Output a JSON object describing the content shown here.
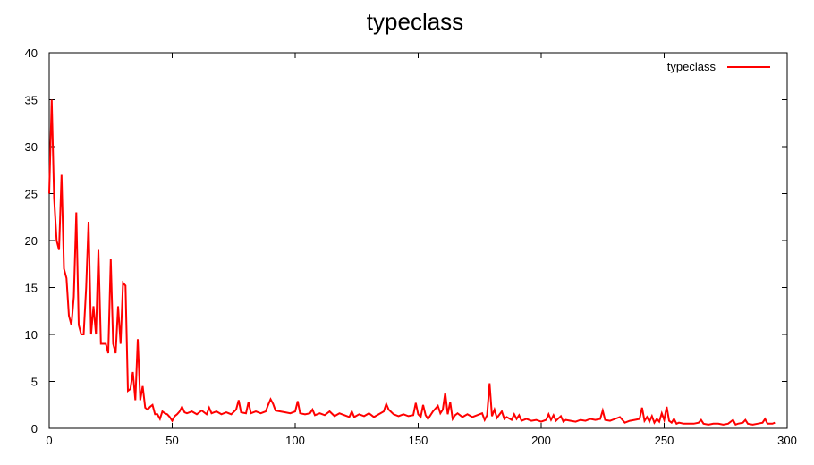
{
  "chart_data": {
    "type": "line",
    "title": "typeclass",
    "xlabel": "",
    "ylabel": "",
    "xlim": [
      0,
      300
    ],
    "ylim": [
      0,
      40
    ],
    "xticks": [
      "0",
      "50",
      "100",
      "150",
      "200",
      "250",
      "300"
    ],
    "yticks": [
      "0",
      "5",
      "10",
      "15",
      "20",
      "25",
      "30",
      "35",
      "40"
    ],
    "grid": false,
    "legend_position": "top-right",
    "series": [
      {
        "name": "typeclass",
        "color": "#ff0000",
        "points": [
          [
            0,
            25
          ],
          [
            1,
            35
          ],
          [
            2,
            24.5
          ],
          [
            3,
            20
          ],
          [
            4,
            19
          ],
          [
            5,
            27
          ],
          [
            6,
            17
          ],
          [
            7,
            16
          ],
          [
            8,
            12
          ],
          [
            9,
            11
          ],
          [
            10,
            14
          ],
          [
            11,
            23
          ],
          [
            12,
            11
          ],
          [
            13,
            10
          ],
          [
            14,
            10
          ],
          [
            15,
            15
          ],
          [
            16,
            22
          ],
          [
            17,
            10
          ],
          [
            18,
            13
          ],
          [
            19,
            10
          ],
          [
            20,
            19
          ],
          [
            21,
            9
          ],
          [
            22,
            9
          ],
          [
            23,
            9
          ],
          [
            24,
            8
          ],
          [
            25,
            18
          ],
          [
            26,
            9
          ],
          [
            27,
            8
          ],
          [
            28,
            13
          ],
          [
            29,
            9
          ],
          [
            30,
            15.5
          ],
          [
            31,
            15.2
          ],
          [
            32,
            4
          ],
          [
            33,
            4.2
          ],
          [
            34,
            6
          ],
          [
            35,
            3
          ],
          [
            36,
            9.5
          ],
          [
            37,
            3
          ],
          [
            38,
            4.5
          ],
          [
            39,
            2.2
          ],
          [
            40,
            2
          ],
          [
            41,
            2.3
          ],
          [
            42,
            2.5
          ],
          [
            43,
            1.5
          ],
          [
            44,
            1.5
          ],
          [
            45,
            1.0
          ],
          [
            46,
            1.8
          ],
          [
            47,
            1.6
          ],
          [
            48,
            1.5
          ],
          [
            49,
            1.2
          ],
          [
            50,
            0.8
          ],
          [
            51,
            1.3
          ],
          [
            52,
            1.5
          ],
          [
            53,
            1.8
          ],
          [
            54,
            2.3
          ],
          [
            55,
            1.7
          ],
          [
            56,
            1.6
          ],
          [
            58,
            1.8
          ],
          [
            60,
            1.5
          ],
          [
            62,
            1.9
          ],
          [
            64,
            1.5
          ],
          [
            65,
            2.2
          ],
          [
            66,
            1.6
          ],
          [
            68,
            1.8
          ],
          [
            70,
            1.5
          ],
          [
            72,
            1.7
          ],
          [
            74,
            1.5
          ],
          [
            76,
            2.0
          ],
          [
            77,
            3.0
          ],
          [
            78,
            1.7
          ],
          [
            80,
            1.6
          ],
          [
            81,
            2.8
          ],
          [
            82,
            1.6
          ],
          [
            84,
            1.8
          ],
          [
            86,
            1.6
          ],
          [
            88,
            1.8
          ],
          [
            89,
            2.5
          ],
          [
            90,
            3.1
          ],
          [
            91,
            2.6
          ],
          [
            92,
            1.9
          ],
          [
            94,
            1.8
          ],
          [
            96,
            1.7
          ],
          [
            98,
            1.6
          ],
          [
            100,
            1.8
          ],
          [
            101,
            2.9
          ],
          [
            102,
            1.6
          ],
          [
            104,
            1.5
          ],
          [
            106,
            1.6
          ],
          [
            107,
            2.0
          ],
          [
            108,
            1.4
          ],
          [
            110,
            1.6
          ],
          [
            112,
            1.4
          ],
          [
            114,
            1.8
          ],
          [
            116,
            1.3
          ],
          [
            118,
            1.6
          ],
          [
            120,
            1.4
          ],
          [
            122,
            1.2
          ],
          [
            123,
            1.8
          ],
          [
            124,
            1.2
          ],
          [
            126,
            1.5
          ],
          [
            128,
            1.3
          ],
          [
            130,
            1.6
          ],
          [
            132,
            1.2
          ],
          [
            134,
            1.5
          ],
          [
            136,
            1.8
          ],
          [
            137,
            2.6
          ],
          [
            138,
            2.0
          ],
          [
            140,
            1.5
          ],
          [
            142,
            1.3
          ],
          [
            144,
            1.5
          ],
          [
            146,
            1.3
          ],
          [
            148,
            1.4
          ],
          [
            149,
            2.7
          ],
          [
            150,
            1.5
          ],
          [
            151,
            1.2
          ],
          [
            152,
            2.5
          ],
          [
            153,
            1.4
          ],
          [
            154,
            1.0
          ],
          [
            156,
            1.8
          ],
          [
            158,
            2.4
          ],
          [
            159,
            1.6
          ],
          [
            160,
            2.0
          ],
          [
            161,
            3.8
          ],
          [
            162,
            1.5
          ],
          [
            163,
            2.8
          ],
          [
            164,
            1.0
          ],
          [
            165,
            1.4
          ],
          [
            166,
            1.6
          ],
          [
            168,
            1.2
          ],
          [
            170,
            1.5
          ],
          [
            172,
            1.2
          ],
          [
            174,
            1.4
          ],
          [
            176,
            1.6
          ],
          [
            177,
            0.9
          ],
          [
            178,
            1.4
          ],
          [
            179,
            4.8
          ],
          [
            180,
            1.3
          ],
          [
            181,
            2.0
          ],
          [
            182,
            1.1
          ],
          [
            184,
            1.8
          ],
          [
            185,
            1.0
          ],
          [
            186,
            1.2
          ],
          [
            188,
            0.9
          ],
          [
            189,
            1.5
          ],
          [
            190,
            1.0
          ],
          [
            191,
            1.4
          ],
          [
            192,
            0.8
          ],
          [
            194,
            1.0
          ],
          [
            196,
            0.8
          ],
          [
            198,
            0.9
          ],
          [
            200,
            0.7
          ],
          [
            202,
            0.9
          ],
          [
            203,
            1.5
          ],
          [
            204,
            0.9
          ],
          [
            205,
            1.4
          ],
          [
            206,
            0.8
          ],
          [
            208,
            1.3
          ],
          [
            209,
            0.7
          ],
          [
            210,
            0.9
          ],
          [
            212,
            0.8
          ],
          [
            214,
            0.7
          ],
          [
            216,
            0.9
          ],
          [
            218,
            0.8
          ],
          [
            220,
            1.0
          ],
          [
            222,
            0.9
          ],
          [
            224,
            1.0
          ],
          [
            225,
            1.9
          ],
          [
            226,
            0.9
          ],
          [
            228,
            0.8
          ],
          [
            230,
            1.0
          ],
          [
            232,
            1.2
          ],
          [
            234,
            0.6
          ],
          [
            236,
            0.8
          ],
          [
            238,
            0.9
          ],
          [
            240,
            1.0
          ],
          [
            241,
            2.2
          ],
          [
            242,
            0.8
          ],
          [
            243,
            1.2
          ],
          [
            244,
            0.7
          ],
          [
            245,
            1.3
          ],
          [
            246,
            0.6
          ],
          [
            247,
            1.0
          ],
          [
            248,
            0.7
          ],
          [
            249,
            1.6
          ],
          [
            250,
            0.9
          ],
          [
            251,
            2.3
          ],
          [
            252,
            0.8
          ],
          [
            253,
            0.6
          ],
          [
            254,
            1.0
          ],
          [
            255,
            0.5
          ],
          [
            256,
            0.6
          ],
          [
            258,
            0.5
          ],
          [
            260,
            0.5
          ],
          [
            262,
            0.5
          ],
          [
            264,
            0.6
          ],
          [
            265,
            0.9
          ],
          [
            266,
            0.5
          ],
          [
            268,
            0.4
          ],
          [
            270,
            0.5
          ],
          [
            272,
            0.5
          ],
          [
            274,
            0.4
          ],
          [
            276,
            0.5
          ],
          [
            278,
            0.9
          ],
          [
            279,
            0.4
          ],
          [
            280,
            0.5
          ],
          [
            282,
            0.6
          ],
          [
            283,
            0.9
          ],
          [
            284,
            0.5
          ],
          [
            286,
            0.4
          ],
          [
            288,
            0.5
          ],
          [
            290,
            0.6
          ],
          [
            291,
            1.0
          ],
          [
            292,
            0.5
          ],
          [
            294,
            0.5
          ],
          [
            295,
            0.6
          ]
        ]
      }
    ]
  }
}
